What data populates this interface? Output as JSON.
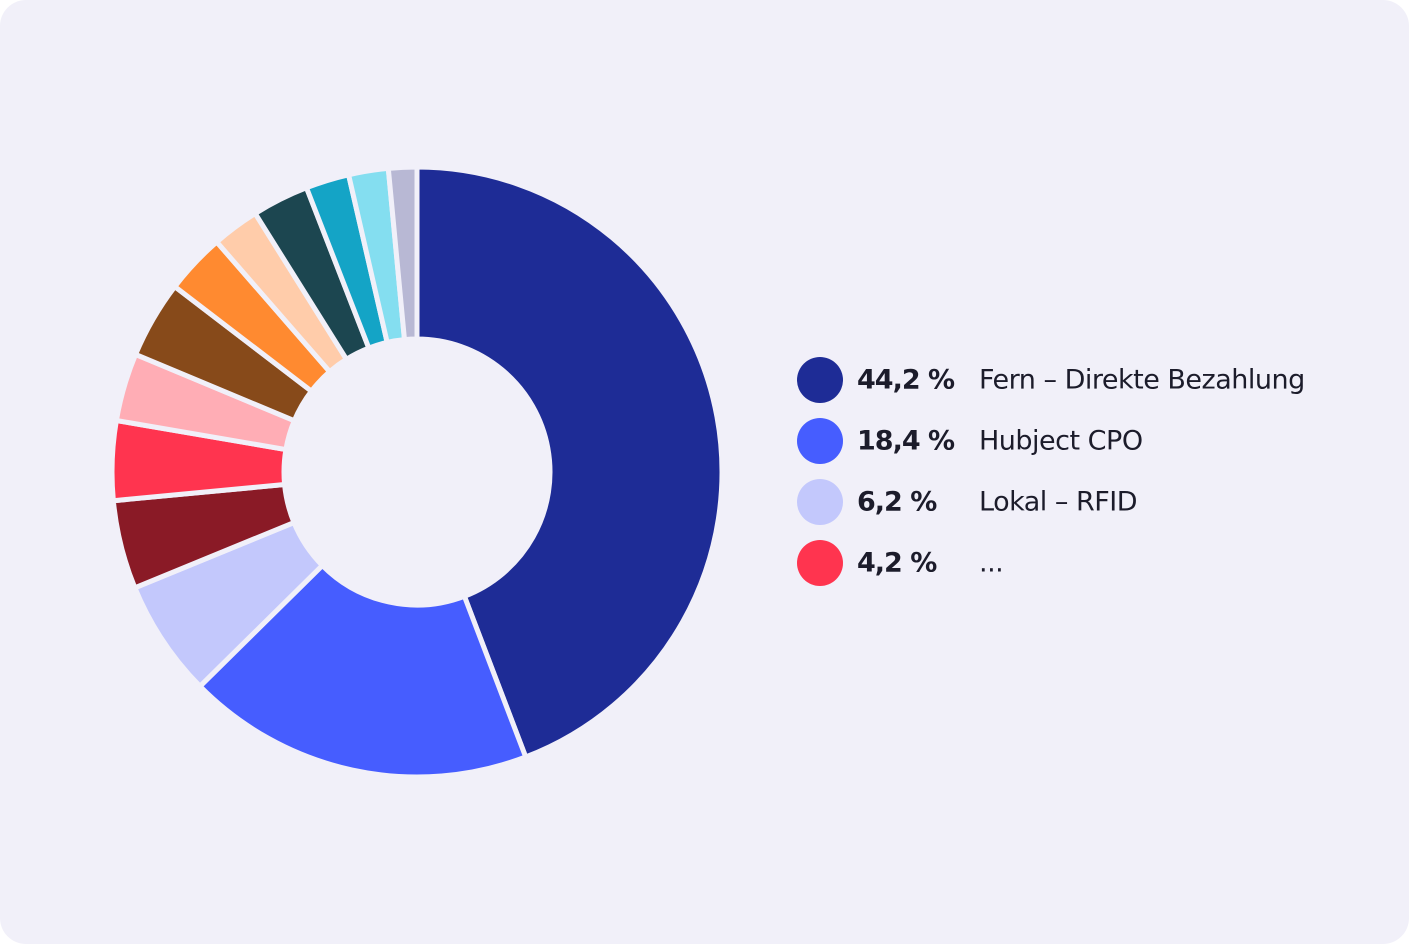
{
  "chart_data": {
    "type": "donut",
    "categories": [
      "Fern – Direkte Bezahlung",
      "Hubject CPO",
      "Lokal – RFID",
      null,
      "...",
      null,
      null,
      null,
      null,
      null,
      null,
      null,
      null
    ],
    "values": [
      44.2,
      18.4,
      6.2,
      4.7,
      4.2,
      3.6,
      4.1,
      3.2,
      2.5,
      3.0,
      2.3,
      2.1,
      1.5
    ],
    "value_labels": [
      "44,2 %",
      "18,4 %",
      "6,2 %",
      null,
      "4,2 %",
      null,
      null,
      null,
      null,
      null,
      null,
      null,
      null
    ],
    "colors": [
      "#1e2c96",
      "#465dff",
      "#c3c8fc",
      "#8a1a26",
      "#ff344f",
      "#ffadb5",
      "#874a1a",
      "#ff8a30",
      "#ffccaa",
      "#1c4650",
      "#14a4c6",
      "#84def0",
      "#b8b8d4"
    ]
  }
}
